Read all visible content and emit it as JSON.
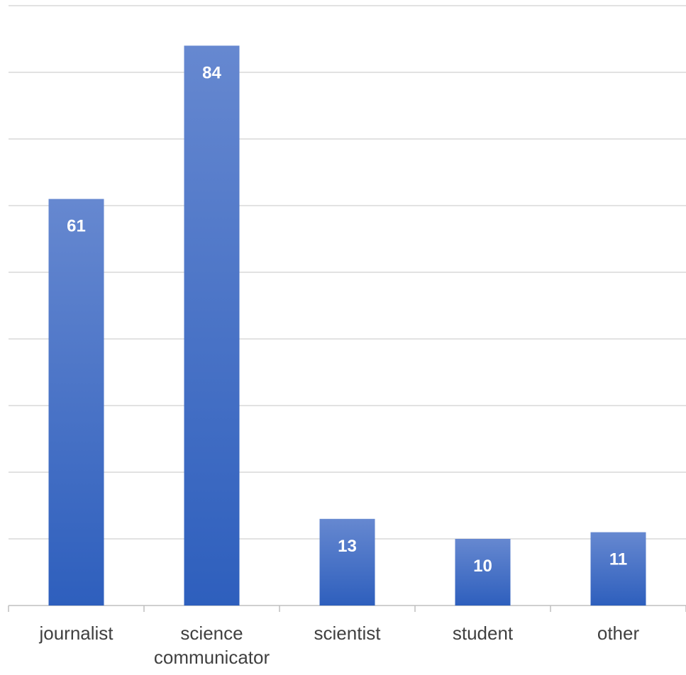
{
  "chart_data": {
    "type": "bar",
    "categories": [
      "journalist",
      "science communicator",
      "scientist",
      "student",
      "other"
    ],
    "category_lines": [
      [
        "journalist"
      ],
      [
        "science",
        "communicator"
      ],
      [
        "scientist"
      ],
      [
        "student"
      ],
      [
        "other"
      ]
    ],
    "values": [
      61,
      84,
      13,
      10,
      11
    ],
    "ylim": [
      0,
      90
    ],
    "grid": true,
    "legend": "none",
    "data_labels": true,
    "colors": {
      "bar_top": "#6688d0",
      "bar_bottom": "#2e5fbd",
      "grid": "#d9d9d9",
      "axis": "#bfbfbf",
      "label": "#404040"
    }
  }
}
